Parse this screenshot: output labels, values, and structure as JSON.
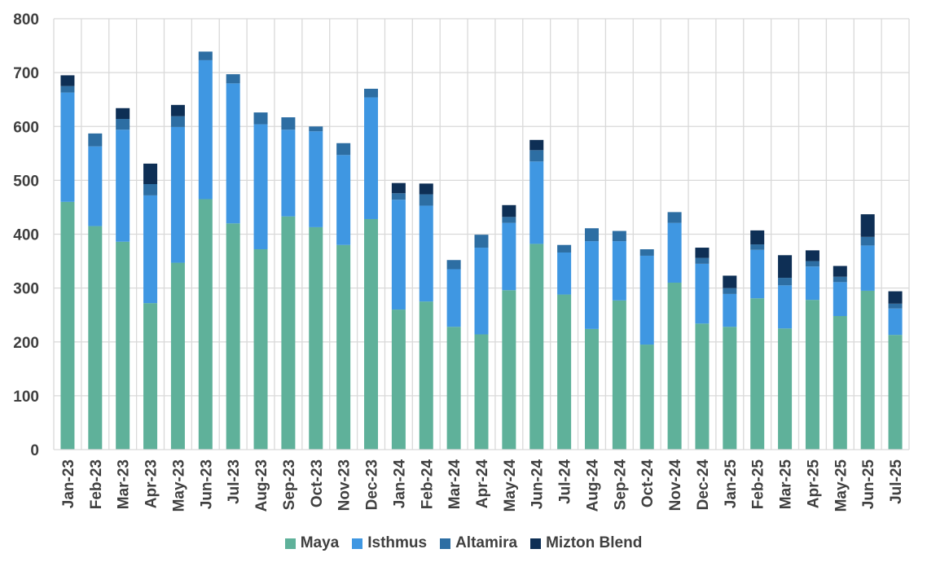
{
  "chart_data": {
    "type": "bar",
    "stacked": true,
    "categories": [
      "Jan-23",
      "Feb-23",
      "Mar-23",
      "Apr-23",
      "May-23",
      "Jun-23",
      "Jul-23",
      "Aug-23",
      "Sep-23",
      "Oct-23",
      "Nov-23",
      "Dec-23",
      "Jan-24",
      "Feb-24",
      "Mar-24",
      "Apr-24",
      "May-24",
      "Jun-24",
      "Jul-24",
      "Aug-24",
      "Sep-24",
      "Oct-24",
      "Nov-24",
      "Dec-24",
      "Jan-25",
      "Feb-25",
      "Mar-25",
      "Apr-25",
      "May-25",
      "Jun-25",
      "Jul-25"
    ],
    "series": [
      {
        "name": "Maya",
        "color": "#5fb19a",
        "values": [
          460,
          415,
          386,
          272,
          347,
          465,
          420,
          372,
          433,
          413,
          380,
          428,
          260,
          275,
          228,
          214,
          296,
          382,
          288,
          224,
          277,
          195,
          310,
          234,
          228,
          281,
          225,
          278,
          248,
          295,
          213
        ]
      },
      {
        "name": "Isthmus",
        "color": "#3f97e2",
        "values": [
          203,
          148,
          208,
          200,
          252,
          258,
          260,
          232,
          161,
          178,
          167,
          226,
          204,
          178,
          107,
          161,
          125,
          153,
          78,
          163,
          110,
          165,
          111,
          111,
          61,
          90,
          80,
          62,
          63,
          84,
          49
        ]
      },
      {
        "name": "Altamira",
        "color": "#2d6ea3",
        "values": [
          12,
          24,
          20,
          21,
          20,
          16,
          17,
          22,
          23,
          9,
          22,
          16,
          12,
          21,
          17,
          24,
          11,
          21,
          14,
          24,
          19,
          12,
          20,
          11,
          11,
          10,
          14,
          10,
          10,
          16,
          9
        ]
      },
      {
        "name": "Mizton Blend",
        "color": "#0e2f55",
        "values": [
          20,
          0,
          20,
          38,
          21,
          0,
          0,
          0,
          0,
          0,
          0,
          0,
          19,
          20,
          0,
          0,
          22,
          19,
          0,
          0,
          0,
          0,
          0,
          19,
          23,
          26,
          42,
          20,
          20,
          42,
          23
        ]
      }
    ],
    "title": "",
    "xlabel": "",
    "ylabel": "",
    "ylim": [
      0,
      800
    ],
    "yticks": [
      "0",
      "100",
      "200",
      "300",
      "400",
      "500",
      "600",
      "700",
      "800"
    ],
    "grid": true,
    "legend_position": "bottom"
  }
}
